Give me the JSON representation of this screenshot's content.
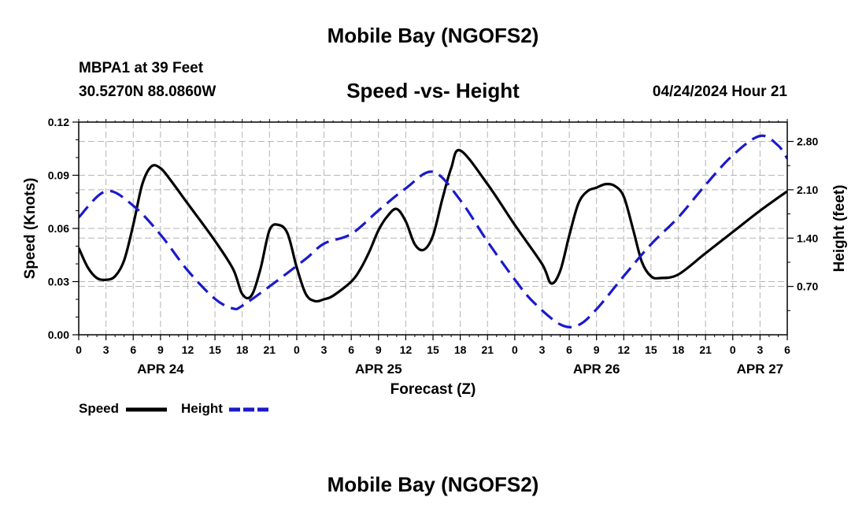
{
  "header": {
    "title_top": "Mobile Bay (NGOFS2)",
    "station": "MBPA1 at 39 Feet",
    "coords": "30.5270N  88.0860W",
    "chart_title": "Speed -vs- Height",
    "date": "04/24/2024 Hour 21",
    "title_bottom": "Mobile Bay (NGOFS2)"
  },
  "chart_data": {
    "type": "line",
    "title": "Speed -vs- Height",
    "xlabel": "Forecast (Z)",
    "ylabel": "Speed (Knots)",
    "y2label": "Height (feet)",
    "xlim": [
      0,
      78
    ],
    "ylim": [
      0,
      0.12
    ],
    "y2lim": [
      0,
      3.08
    ],
    "y_ticks": [
      "0.00",
      "0.03",
      "0.06",
      "0.09",
      "0.12"
    ],
    "y2_ticks": [
      "0.70",
      "1.40",
      "2.10",
      "2.80"
    ],
    "x_tick_labels": [
      "0",
      "3",
      "6",
      "9",
      "12",
      "15",
      "18",
      "21",
      "0",
      "3",
      "6",
      "9",
      "12",
      "15",
      "18",
      "21",
      "0",
      "3",
      "6",
      "9",
      "12",
      "15",
      "18",
      "21",
      "0",
      "3",
      "6"
    ],
    "date_labels": [
      {
        "hour": 9,
        "label": "APR 24"
      },
      {
        "hour": 33,
        "label": "APR 25"
      },
      {
        "hour": 57,
        "label": "APR 26"
      },
      {
        "hour": 75,
        "label": "APR 27"
      }
    ],
    "grid": true,
    "legend_position": "bottom-left",
    "series": [
      {
        "name": "Speed",
        "color": "#000000",
        "dash": "solid",
        "axis": "left",
        "x": [
          0,
          1,
          2,
          3,
          4,
          5,
          6,
          7,
          8,
          9,
          10,
          12,
          15,
          17,
          18,
          19,
          20,
          21,
          22,
          23,
          24,
          25,
          26,
          27,
          28,
          30,
          31,
          32,
          33,
          34,
          35,
          36,
          37,
          38,
          39,
          40,
          41,
          42,
          45,
          48,
          51,
          52,
          53,
          54,
          55,
          56,
          57,
          58,
          59,
          60,
          61,
          62,
          63,
          64,
          66,
          69,
          72,
          75,
          78
        ],
        "values": [
          0.049,
          0.038,
          0.032,
          0.031,
          0.033,
          0.042,
          0.062,
          0.085,
          0.095,
          0.094,
          0.088,
          0.074,
          0.053,
          0.037,
          0.023,
          0.022,
          0.037,
          0.059,
          0.062,
          0.057,
          0.038,
          0.023,
          0.019,
          0.02,
          0.022,
          0.03,
          0.037,
          0.047,
          0.059,
          0.067,
          0.071,
          0.064,
          0.051,
          0.048,
          0.056,
          0.076,
          0.094,
          0.104,
          0.085,
          0.062,
          0.04,
          0.029,
          0.036,
          0.056,
          0.074,
          0.081,
          0.083,
          0.085,
          0.084,
          0.078,
          0.06,
          0.041,
          0.033,
          0.032,
          0.034,
          0.046,
          0.058,
          0.07,
          0.081
        ]
      },
      {
        "name": "Height",
        "color": "#1a1acc",
        "dash": "dashed",
        "axis": "right",
        "x": [
          0,
          3,
          6,
          9,
          12,
          15,
          17,
          18,
          21,
          25,
          27,
          30,
          33,
          36,
          39,
          42,
          45,
          48,
          50,
          53,
          55,
          57,
          60,
          63,
          66,
          69,
          72,
          75,
          77,
          78
        ],
        "values": [
          1.7,
          2.08,
          1.87,
          1.45,
          0.93,
          0.52,
          0.38,
          0.42,
          0.7,
          1.1,
          1.32,
          1.46,
          1.8,
          2.12,
          2.36,
          1.95,
          1.35,
          0.8,
          0.48,
          0.15,
          0.14,
          0.37,
          0.85,
          1.31,
          1.7,
          2.17,
          2.6,
          2.88,
          2.74,
          2.55
        ]
      }
    ]
  }
}
